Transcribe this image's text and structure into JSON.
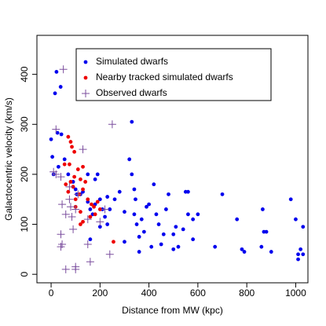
{
  "chart_data": {
    "type": "scatter",
    "x_label": "Distance from MW (kpc)",
    "y_label": "Galactocentric velocity (km/s)",
    "xlim": [
      -58,
      1050
    ],
    "ylim": [
      -17,
      478
    ],
    "xticks": [
      0,
      200,
      400,
      600,
      800,
      1000
    ],
    "yticks": [
      0,
      100,
      200,
      300,
      400
    ],
    "series": [
      {
        "name": "Simulated dwarfs",
        "color": "#0000ee",
        "marker": "dot",
        "x": [
          22,
          16,
          39,
          26,
          42,
          0,
          5,
          10,
          30,
          55,
          70,
          90,
          100,
          105,
          120,
          130,
          150,
          160,
          170,
          180,
          190,
          200,
          180,
          150,
          210,
          220,
          230,
          240,
          260,
          280,
          300,
          320,
          330,
          330,
          340,
          345,
          340,
          350,
          360,
          370,
          380,
          390,
          400,
          410,
          420,
          430,
          440,
          450,
          460,
          470,
          480,
          500,
          510,
          520,
          540,
          550,
          560,
          560,
          580,
          580,
          600,
          670,
          700,
          760,
          780,
          790,
          860,
          865,
          870,
          900,
          980,
          1000,
          1010,
          1020,
          1030,
          1030,
          1010,
          880,
          500,
          360,
          300,
          230,
          200,
          160
        ],
        "y": [
          405,
          362,
          375,
          283,
          280,
          270,
          235,
          200,
          215,
          230,
          200,
          185,
          170,
          160,
          160,
          165,
          145,
          130,
          120,
          140,
          200,
          150,
          190,
          200,
          130,
          115,
          100,
          130,
          150,
          165,
          125,
          230,
          305,
          200,
          170,
          150,
          120,
          100,
          75,
          110,
          85,
          135,
          140,
          55,
          180,
          120,
          100,
          60,
          80,
          130,
          160,
          80,
          95,
          55,
          90,
          165,
          165,
          120,
          110,
          70,
          120,
          55,
          160,
          110,
          50,
          45,
          55,
          130,
          85,
          45,
          150,
          110,
          40,
          50,
          40,
          95,
          30,
          85,
          50,
          45,
          65,
          155,
          95,
          70
        ]
      },
      {
        "name": "Nearby tracked simulated dwarfs",
        "color": "#ee0000",
        "marker": "dot",
        "x": [
          70,
          80,
          85,
          95,
          55,
          75,
          90,
          100,
          110,
          95,
          120,
          130,
          140,
          130,
          115,
          150,
          165,
          175,
          190,
          200,
          180,
          160,
          130,
          120,
          80,
          60,
          70,
          100,
          120,
          255
        ],
        "y": [
          275,
          265,
          255,
          245,
          220,
          220,
          175,
          150,
          210,
          195,
          190,
          215,
          185,
          170,
          160,
          150,
          140,
          135,
          145,
          130,
          120,
          115,
          105,
          100,
          185,
          180,
          165,
          135,
          125,
          65
        ]
      },
      {
        "name": "Observed dwarfs",
        "color": "#7b4e9e",
        "marker": "plus",
        "x": [
          20,
          50,
          20,
          40,
          10,
          45,
          60,
          75,
          80,
          100,
          85,
          40,
          45,
          40,
          60,
          100,
          130,
          110,
          150,
          150,
          160,
          200,
          220,
          250,
          240,
          75,
          100,
          90
        ],
        "y": [
          290,
          410,
          200,
          195,
          205,
          140,
          120,
          150,
          135,
          130,
          115,
          80,
          60,
          55,
          10,
          15,
          250,
          160,
          110,
          60,
          25,
          105,
          130,
          300,
          40,
          175,
          10,
          90
        ]
      }
    ]
  }
}
